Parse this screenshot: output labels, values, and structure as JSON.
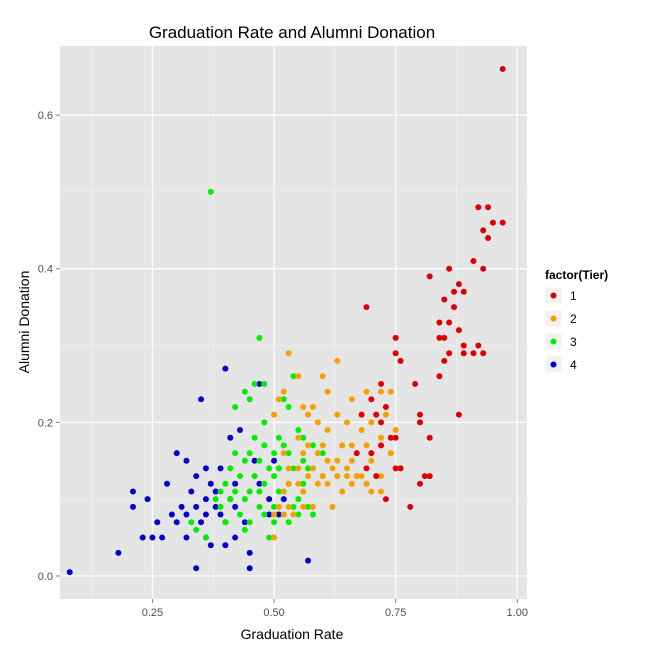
{
  "chart_data": {
    "type": "scatter",
    "title": "Graduation Rate and Alumni Donation",
    "xlabel": "Graduation Rate",
    "ylabel": "Alumni Donation",
    "xlim": [
      0.06,
      1.02
    ],
    "ylim": [
      -0.03,
      0.69
    ],
    "xticks": [
      0.25,
      0.5,
      0.75,
      1.0
    ],
    "xtick_labels": [
      "0.25",
      "0.50",
      "0.75",
      "1.00"
    ],
    "yticks": [
      0.0,
      0.2,
      0.4,
      0.6
    ],
    "ytick_labels": [
      "0.0",
      "0.2",
      "0.4",
      "0.6"
    ],
    "grid": true,
    "legend": {
      "title": "factor(Tier)",
      "position": "right"
    },
    "series": [
      {
        "name": "1",
        "color": "#dd0000",
        "points": [
          [
            0.97,
            0.66
          ],
          [
            0.92,
            0.48
          ],
          [
            0.94,
            0.48
          ],
          [
            0.95,
            0.46
          ],
          [
            0.97,
            0.46
          ],
          [
            0.93,
            0.45
          ],
          [
            0.94,
            0.44
          ],
          [
            0.91,
            0.41
          ],
          [
            0.86,
            0.4
          ],
          [
            0.93,
            0.4
          ],
          [
            0.82,
            0.39
          ],
          [
            0.88,
            0.38
          ],
          [
            0.89,
            0.37
          ],
          [
            0.87,
            0.37
          ],
          [
            0.85,
            0.36
          ],
          [
            0.87,
            0.35
          ],
          [
            0.69,
            0.35
          ],
          [
            0.86,
            0.33
          ],
          [
            0.84,
            0.33
          ],
          [
            0.88,
            0.32
          ],
          [
            0.85,
            0.31
          ],
          [
            0.84,
            0.31
          ],
          [
            0.75,
            0.31
          ],
          [
            0.89,
            0.3
          ],
          [
            0.92,
            0.3
          ],
          [
            0.86,
            0.29
          ],
          [
            0.89,
            0.29
          ],
          [
            0.91,
            0.29
          ],
          [
            0.93,
            0.29
          ],
          [
            0.75,
            0.29
          ],
          [
            0.76,
            0.28
          ],
          [
            0.85,
            0.28
          ],
          [
            0.84,
            0.26
          ],
          [
            0.72,
            0.25
          ],
          [
            0.79,
            0.25
          ],
          [
            0.7,
            0.23
          ],
          [
            0.73,
            0.22
          ],
          [
            0.71,
            0.21
          ],
          [
            0.8,
            0.21
          ],
          [
            0.88,
            0.21
          ],
          [
            0.68,
            0.21
          ],
          [
            0.8,
            0.2
          ],
          [
            0.72,
            0.2
          ],
          [
            0.74,
            0.18
          ],
          [
            0.75,
            0.18
          ],
          [
            0.82,
            0.18
          ],
          [
            0.72,
            0.17
          ],
          [
            0.7,
            0.16
          ],
          [
            0.67,
            0.16
          ],
          [
            0.75,
            0.14
          ],
          [
            0.76,
            0.14
          ],
          [
            0.69,
            0.14
          ],
          [
            0.81,
            0.13
          ],
          [
            0.71,
            0.13
          ],
          [
            0.8,
            0.12
          ],
          [
            0.73,
            0.1
          ],
          [
            0.78,
            0.09
          ],
          [
            0.82,
            0.13
          ]
        ]
      },
      {
        "name": "2",
        "color": "#f5a000",
        "points": [
          [
            0.53,
            0.29
          ],
          [
            0.63,
            0.28
          ],
          [
            0.6,
            0.26
          ],
          [
            0.55,
            0.26
          ],
          [
            0.69,
            0.24
          ],
          [
            0.52,
            0.24
          ],
          [
            0.61,
            0.24
          ],
          [
            0.66,
            0.23
          ],
          [
            0.58,
            0.22
          ],
          [
            0.72,
            0.24
          ],
          [
            0.74,
            0.24
          ],
          [
            0.56,
            0.22
          ],
          [
            0.51,
            0.23
          ],
          [
            0.5,
            0.21
          ],
          [
            0.57,
            0.21
          ],
          [
            0.63,
            0.21
          ],
          [
            0.59,
            0.2
          ],
          [
            0.65,
            0.2
          ],
          [
            0.68,
            0.19
          ],
          [
            0.61,
            0.19
          ],
          [
            0.7,
            0.2
          ],
          [
            0.73,
            0.21
          ],
          [
            0.55,
            0.18
          ],
          [
            0.57,
            0.17
          ],
          [
            0.6,
            0.17
          ],
          [
            0.64,
            0.17
          ],
          [
            0.66,
            0.17
          ],
          [
            0.69,
            0.17
          ],
          [
            0.72,
            0.18
          ],
          [
            0.75,
            0.19
          ],
          [
            0.52,
            0.16
          ],
          [
            0.56,
            0.16
          ],
          [
            0.59,
            0.16
          ],
          [
            0.61,
            0.15
          ],
          [
            0.63,
            0.15
          ],
          [
            0.66,
            0.15
          ],
          [
            0.7,
            0.15
          ],
          [
            0.74,
            0.16
          ],
          [
            0.53,
            0.14
          ],
          [
            0.55,
            0.14
          ],
          [
            0.58,
            0.14
          ],
          [
            0.62,
            0.14
          ],
          [
            0.65,
            0.14
          ],
          [
            0.67,
            0.13
          ],
          [
            0.57,
            0.13
          ],
          [
            0.6,
            0.13
          ],
          [
            0.63,
            0.13
          ],
          [
            0.65,
            0.13
          ],
          [
            0.68,
            0.13
          ],
          [
            0.72,
            0.13
          ],
          [
            0.53,
            0.12
          ],
          [
            0.55,
            0.12
          ],
          [
            0.59,
            0.12
          ],
          [
            0.61,
            0.12
          ],
          [
            0.66,
            0.12
          ],
          [
            0.69,
            0.12
          ],
          [
            0.7,
            0.11
          ],
          [
            0.52,
            0.11
          ],
          [
            0.56,
            0.11
          ],
          [
            0.64,
            0.11
          ],
          [
            0.72,
            0.11
          ],
          [
            0.51,
            0.09
          ],
          [
            0.53,
            0.09
          ],
          [
            0.56,
            0.09
          ],
          [
            0.58,
            0.09
          ],
          [
            0.62,
            0.09
          ],
          [
            0.5,
            0.08
          ],
          [
            0.54,
            0.08
          ],
          [
            0.5,
            0.05
          ],
          [
            0.52,
            0.08
          ]
        ]
      },
      {
        "name": "3",
        "color": "#00ee00",
        "points": [
          [
            0.37,
            0.5
          ],
          [
            0.47,
            0.31
          ],
          [
            0.46,
            0.25
          ],
          [
            0.48,
            0.25
          ],
          [
            0.44,
            0.24
          ],
          [
            0.52,
            0.23
          ],
          [
            0.53,
            0.22
          ],
          [
            0.54,
            0.26
          ],
          [
            0.45,
            0.23
          ],
          [
            0.42,
            0.22
          ],
          [
            0.48,
            0.2
          ],
          [
            0.51,
            0.18
          ],
          [
            0.55,
            0.19
          ],
          [
            0.46,
            0.18
          ],
          [
            0.48,
            0.17
          ],
          [
            0.52,
            0.17
          ],
          [
            0.56,
            0.18
          ],
          [
            0.58,
            0.17
          ],
          [
            0.42,
            0.16
          ],
          [
            0.45,
            0.16
          ],
          [
            0.5,
            0.16
          ],
          [
            0.53,
            0.16
          ],
          [
            0.56,
            0.15
          ],
          [
            0.6,
            0.16
          ],
          [
            0.41,
            0.14
          ],
          [
            0.44,
            0.15
          ],
          [
            0.47,
            0.15
          ],
          [
            0.49,
            0.14
          ],
          [
            0.51,
            0.14
          ],
          [
            0.54,
            0.14
          ],
          [
            0.57,
            0.14
          ],
          [
            0.4,
            0.12
          ],
          [
            0.43,
            0.13
          ],
          [
            0.46,
            0.13
          ],
          [
            0.48,
            0.12
          ],
          [
            0.5,
            0.13
          ],
          [
            0.53,
            0.12
          ],
          [
            0.56,
            0.12
          ],
          [
            0.39,
            0.11
          ],
          [
            0.42,
            0.11
          ],
          [
            0.45,
            0.11
          ],
          [
            0.47,
            0.11
          ],
          [
            0.51,
            0.11
          ],
          [
            0.55,
            0.1
          ],
          [
            0.38,
            0.1
          ],
          [
            0.41,
            0.1
          ],
          [
            0.44,
            0.1
          ],
          [
            0.47,
            0.09
          ],
          [
            0.5,
            0.09
          ],
          [
            0.54,
            0.09
          ],
          [
            0.57,
            0.09
          ],
          [
            0.39,
            0.09
          ],
          [
            0.43,
            0.08
          ],
          [
            0.48,
            0.08
          ],
          [
            0.52,
            0.08
          ],
          [
            0.55,
            0.08
          ],
          [
            0.58,
            0.08
          ],
          [
            0.33,
            0.07
          ],
          [
            0.4,
            0.07
          ],
          [
            0.45,
            0.07
          ],
          [
            0.5,
            0.07
          ],
          [
            0.53,
            0.07
          ],
          [
            0.34,
            0.06
          ],
          [
            0.44,
            0.06
          ],
          [
            0.49,
            0.05
          ],
          [
            0.36,
            0.05
          ],
          [
            0.69,
            0.12
          ]
        ]
      },
      {
        "name": "4",
        "color": "#0000cc",
        "points": [
          [
            0.4,
            0.27
          ],
          [
            0.47,
            0.25
          ],
          [
            0.35,
            0.23
          ],
          [
            0.41,
            0.18
          ],
          [
            0.43,
            0.19
          ],
          [
            0.3,
            0.16
          ],
          [
            0.32,
            0.15
          ],
          [
            0.36,
            0.14
          ],
          [
            0.39,
            0.14
          ],
          [
            0.34,
            0.13
          ],
          [
            0.37,
            0.12
          ],
          [
            0.28,
            0.12
          ],
          [
            0.38,
            0.11
          ],
          [
            0.21,
            0.11
          ],
          [
            0.33,
            0.11
          ],
          [
            0.36,
            0.1
          ],
          [
            0.41,
            0.1
          ],
          [
            0.24,
            0.1
          ],
          [
            0.31,
            0.09
          ],
          [
            0.34,
            0.09
          ],
          [
            0.38,
            0.09
          ],
          [
            0.42,
            0.09
          ],
          [
            0.21,
            0.09
          ],
          [
            0.29,
            0.08
          ],
          [
            0.32,
            0.08
          ],
          [
            0.36,
            0.08
          ],
          [
            0.39,
            0.08
          ],
          [
            0.26,
            0.07
          ],
          [
            0.3,
            0.07
          ],
          [
            0.35,
            0.07
          ],
          [
            0.4,
            0.07
          ],
          [
            0.44,
            0.07
          ],
          [
            0.23,
            0.05
          ],
          [
            0.25,
            0.05
          ],
          [
            0.27,
            0.05
          ],
          [
            0.32,
            0.05
          ],
          [
            0.36,
            0.05
          ],
          [
            0.42,
            0.05
          ],
          [
            0.37,
            0.04
          ],
          [
            0.4,
            0.04
          ],
          [
            0.49,
            0.08
          ],
          [
            0.51,
            0.08
          ],
          [
            0.49,
            0.1
          ],
          [
            0.47,
            0.12
          ],
          [
            0.5,
            0.15
          ],
          [
            0.45,
            0.03
          ],
          [
            0.18,
            0.03
          ],
          [
            0.34,
            0.01
          ],
          [
            0.45,
            0.01
          ],
          [
            0.57,
            0.02
          ],
          [
            0.08,
            0.005
          ],
          [
            0.42,
            0.12
          ],
          [
            0.46,
            0.15
          ],
          [
            0.52,
            0.1
          ]
        ]
      }
    ]
  }
}
